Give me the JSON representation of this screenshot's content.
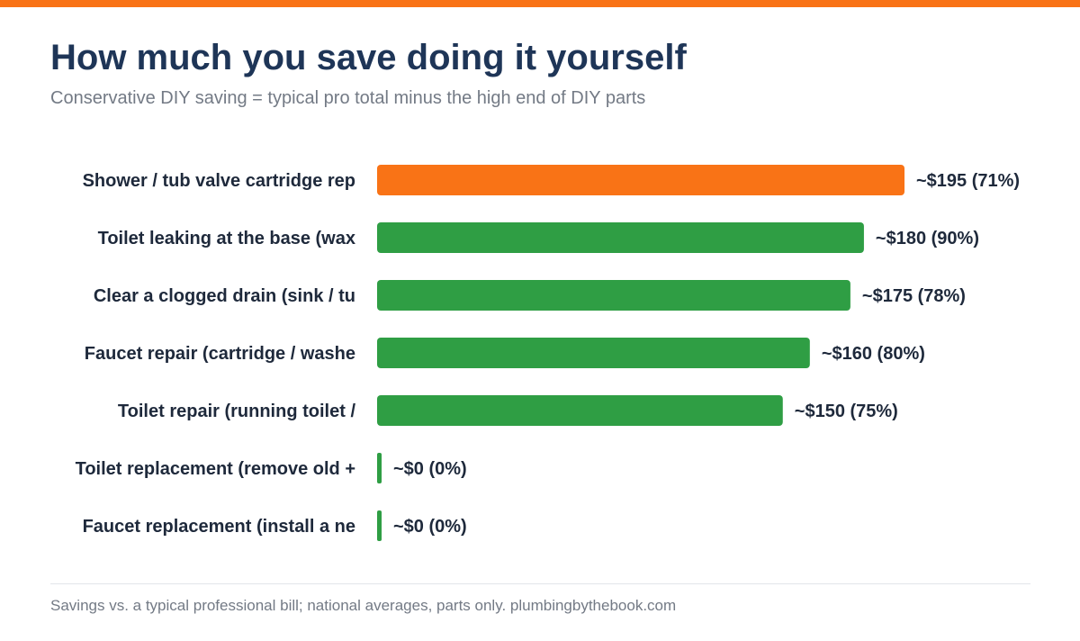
{
  "title": "How much you save doing it yourself",
  "subtitle": "Conservative DIY saving = typical pro total minus the high end of DIY parts",
  "footer": "Savings vs. a typical professional bill; national averages, parts only. plumbingbythebook.com",
  "colors": {
    "accent": "#f97316",
    "bar_highlight": "#f97316",
    "bar_default": "#2f9e44",
    "label_text": "#1e293b"
  },
  "chart_data": {
    "type": "bar",
    "orientation": "horizontal",
    "categories": [
      "Shower / tub valve cartridge rep",
      "Toilet leaking at the base (wax",
      "Clear a clogged drain (sink / tu",
      "Faucet repair (cartridge / washe",
      "Toilet repair (running toilet /",
      "Toilet replacement (remove old +",
      "Faucet replacement (install a ne"
    ],
    "values": [
      195,
      180,
      175,
      160,
      150,
      0,
      0
    ],
    "percent_saved": [
      71,
      90,
      78,
      80,
      75,
      0,
      0
    ],
    "data_labels": [
      "~$195 (71%)",
      "~$180 (90%)",
      "~$175 (78%)",
      "~$160 (80%)",
      "~$150 (75%)",
      "~$0 (0%)",
      "~$0 (0%)"
    ],
    "highlight_index": 0,
    "xlim": [
      0,
      195
    ],
    "grid": false,
    "xlabel": "",
    "ylabel": ""
  }
}
